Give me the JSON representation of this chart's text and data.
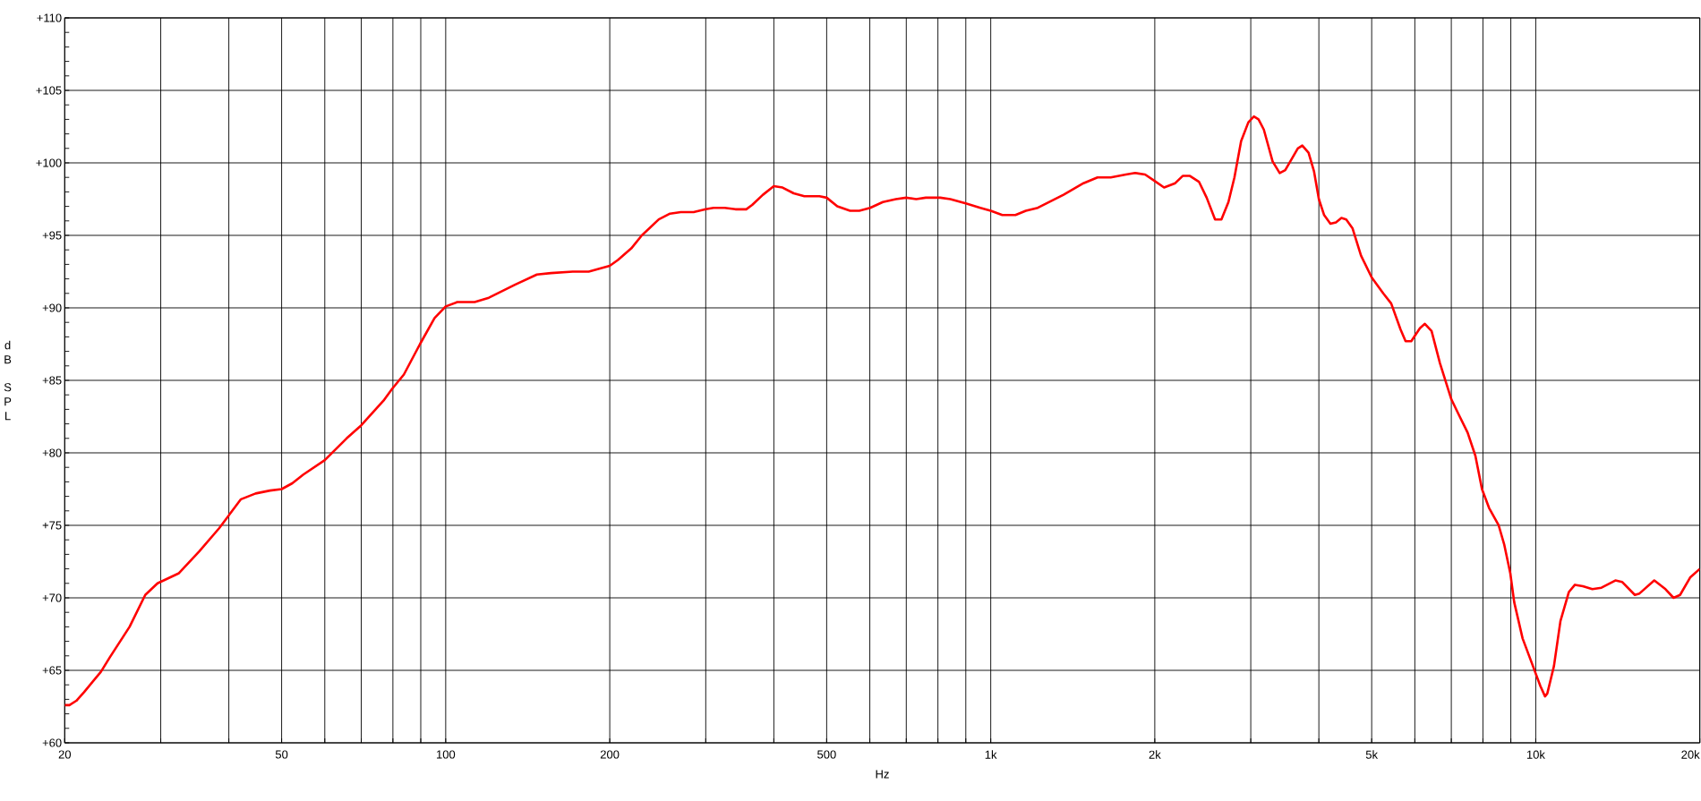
{
  "chart_data": {
    "type": "line",
    "xlabel": "Hz",
    "ylabel": "dB SPL",
    "log": "x",
    "grid": true,
    "xlim": [
      20,
      20000
    ],
    "ylim": [
      60,
      110
    ],
    "xticks": [
      20,
      {
        "value": 30,
        "label": null
      },
      {
        "value": 40,
        "label": null
      },
      50,
      {
        "value": 60,
        "label": null
      },
      {
        "value": 70,
        "label": null
      },
      {
        "value": 80,
        "label": null
      },
      {
        "value": 90,
        "label": null
      },
      100,
      200,
      {
        "value": 300,
        "label": null
      },
      {
        "value": 400,
        "label": null
      },
      500,
      {
        "value": 600,
        "label": null
      },
      {
        "value": 700,
        "label": null
      },
      {
        "value": 800,
        "label": null
      },
      {
        "value": 900,
        "label": null
      },
      {
        "value": 1000,
        "label": "1k"
      },
      {
        "value": 2000,
        "label": "2k"
      },
      {
        "value": 3000,
        "label": null
      },
      {
        "value": 4000,
        "label": null
      },
      {
        "value": 5000,
        "label": "5k"
      },
      {
        "value": 6000,
        "label": null
      },
      {
        "value": 7000,
        "label": null
      },
      {
        "value": 8000,
        "label": null
      },
      {
        "value": 9000,
        "label": null
      },
      {
        "value": 10000,
        "label": "10k"
      },
      {
        "value": 20000,
        "label": "20k"
      }
    ],
    "yticks": [
      {
        "value": 60,
        "label": "+60"
      },
      {
        "value": 65,
        "label": "+65"
      },
      {
        "value": 70,
        "label": "+70"
      },
      {
        "value": 75,
        "label": "+75"
      },
      {
        "value": 80,
        "label": "+80"
      },
      {
        "value": 85,
        "label": "+85"
      },
      {
        "value": 90,
        "label": "+90"
      },
      {
        "value": 95,
        "label": "+95"
      },
      {
        "value": 100,
        "label": "+100"
      },
      {
        "value": 105,
        "label": "+105"
      },
      {
        "value": 110,
        "label": "+110"
      }
    ],
    "x": [
      20,
      20.4,
      21,
      21.7,
      23.3,
      24.2,
      26.3,
      28.1,
      29.6,
      32.4,
      35.3,
      38.4,
      42.1,
      44.8,
      47.6,
      50,
      52.3,
      54.8,
      60,
      65.8,
      70,
      76.9,
      79.7,
      83.8,
      89.7,
      95.4,
      100,
      105,
      113,
      120,
      134,
      147,
      156,
      171,
      183,
      200,
      207,
      219,
      229,
      246,
      258,
      270,
      285,
      300,
      310,
      325,
      340,
      356,
      365,
      382,
      400,
      415,
      435,
      455,
      485,
      500,
      523,
      552,
      574,
      601,
      634,
      670,
      700,
      730,
      760,
      808,
      843,
      900,
      957,
      1000,
      1050,
      1110,
      1160,
      1220,
      1360,
      1480,
      1570,
      1660,
      1770,
      1840,
      1920,
      1990,
      2080,
      2180,
      2250,
      2320,
      2410,
      2490,
      2580,
      2650,
      2730,
      2800,
      2880,
      2970,
      3040,
      3100,
      3170,
      3290,
      3390,
      3470,
      3660,
      3730,
      3830,
      3920,
      4000,
      4090,
      4200,
      4300,
      4400,
      4490,
      4610,
      4780,
      5000,
      5250,
      5430,
      5650,
      5770,
      5910,
      6130,
      6260,
      6440,
      6670,
      7000,
      7210,
      7500,
      7750,
      7970,
      8210,
      8550,
      8750,
      8980,
      9130,
      9460,
      9880,
      10200,
      10400,
      10500,
      10800,
      11100,
      11500,
      11800,
      12200,
      12700,
      13200,
      14000,
      14400,
      15200,
      15500,
      16500,
      17300,
      17900,
      18400,
      19200,
      20000
    ],
    "series": [
      {
        "color": "#ff0000",
        "values": [
          62.6,
          62.6,
          62.9,
          63.5,
          64.9,
          65.9,
          68.0,
          70.2,
          71.0,
          71.7,
          73.2,
          74.8,
          76.8,
          77.2,
          77.4,
          77.5,
          77.9,
          78.5,
          79.5,
          81.0,
          81.9,
          83.6,
          84.4,
          85.4,
          87.5,
          89.3,
          90.1,
          90.4,
          90.4,
          90.7,
          91.6,
          92.3,
          92.4,
          92.5,
          92.5,
          92.9,
          93.3,
          94.1,
          95.0,
          96.1,
          96.5,
          96.6,
          96.6,
          96.8,
          96.9,
          96.9,
          96.8,
          96.8,
          97.1,
          97.8,
          98.4,
          98.3,
          97.9,
          97.7,
          97.7,
          97.6,
          97.0,
          96.7,
          96.7,
          96.9,
          97.3,
          97.5,
          97.6,
          97.5,
          97.6,
          97.6,
          97.5,
          97.2,
          96.9,
          96.7,
          96.4,
          96.4,
          96.7,
          96.9,
          97.8,
          98.6,
          99.0,
          99.0,
          99.2,
          99.3,
          99.2,
          98.8,
          98.3,
          98.6,
          99.1,
          99.1,
          98.7,
          97.6,
          96.1,
          96.1,
          97.3,
          99.0,
          101.5,
          102.8,
          103.2,
          103.0,
          102.3,
          100.1,
          99.3,
          99.5,
          101.0,
          101.2,
          100.7,
          99.4,
          97.5,
          96.4,
          95.8,
          95.9,
          96.2,
          96.1,
          95.5,
          93.6,
          92.1,
          91.0,
          90.3,
          88.5,
          87.7,
          87.7,
          88.6,
          88.9,
          88.4,
          86.2,
          83.7,
          82.7,
          81.4,
          79.8,
          77.5,
          76.2,
          75.0,
          73.7,
          71.7,
          69.7,
          67.2,
          65.3,
          63.9,
          63.2,
          63.4,
          65.3,
          68.4,
          70.4,
          70.9,
          70.8,
          70.6,
          70.7,
          71.2,
          71.1,
          70.2,
          70.3,
          71.2,
          70.6,
          70.0,
          70.2,
          71.4,
          72.0
        ]
      }
    ]
  }
}
